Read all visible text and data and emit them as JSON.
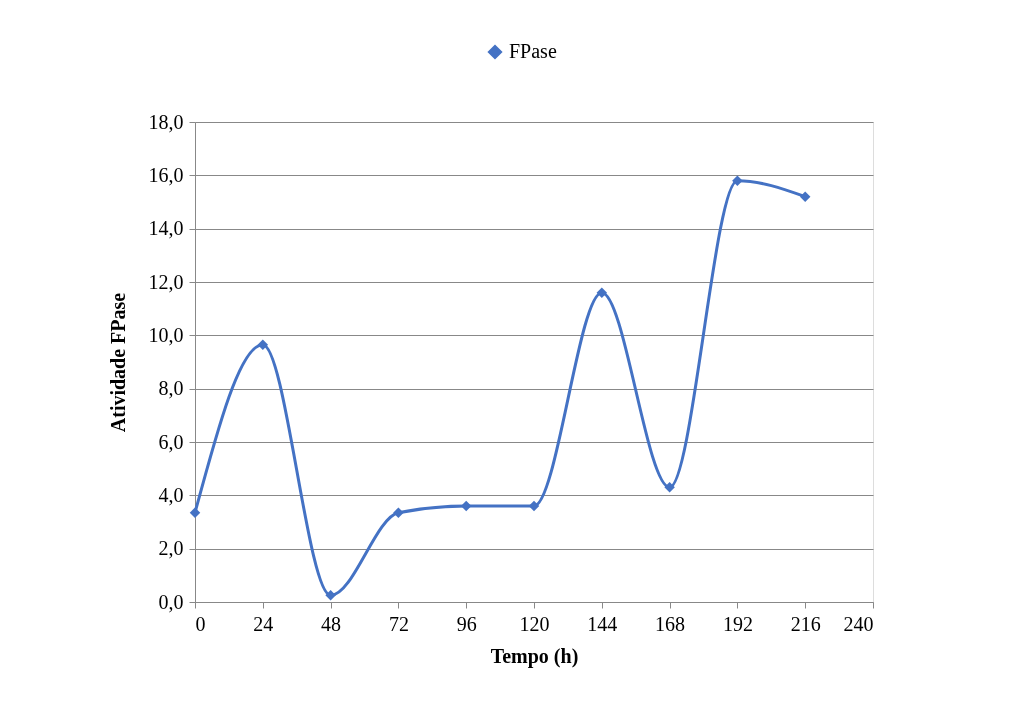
{
  "chart_data": {
    "type": "line",
    "xlabel": "Tempo (h)",
    "ylabel": "Atividade FPase",
    "x": [
      0,
      24,
      48,
      72,
      96,
      120,
      144,
      168,
      192,
      216
    ],
    "series": [
      {
        "name": "FPase",
        "color": "#4472c4",
        "values": [
          3.35,
          9.65,
          0.25,
          3.35,
          3.6,
          3.6,
          11.6,
          4.3,
          15.8,
          15.2
        ]
      }
    ],
    "xlim": [
      0,
      240
    ],
    "xticks": [
      0,
      24,
      48,
      72,
      96,
      120,
      144,
      168,
      192,
      216,
      240
    ],
    "ylim": [
      0,
      18
    ],
    "yticks": [
      {
        "value": 0,
        "label": "0,0"
      },
      {
        "value": 2,
        "label": "2,0"
      },
      {
        "value": 4,
        "label": "4,0"
      },
      {
        "value": 6,
        "label": "6,0"
      },
      {
        "value": 8,
        "label": "8,0"
      },
      {
        "value": 10,
        "label": "10,0"
      },
      {
        "value": 12,
        "label": "12,0"
      },
      {
        "value": 14,
        "label": "14,0"
      },
      {
        "value": 16,
        "label": "16,0"
      },
      {
        "value": 18,
        "label": "18,0"
      }
    ],
    "grid": "y",
    "legend": "top",
    "marker": "diamond",
    "line_style": "solid"
  }
}
